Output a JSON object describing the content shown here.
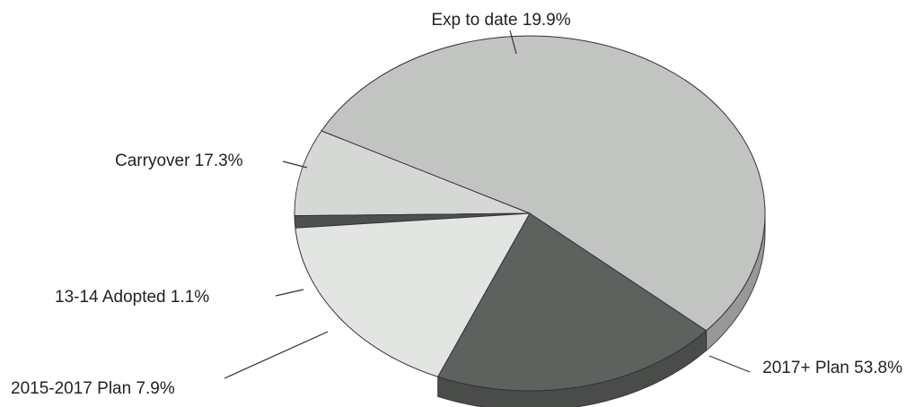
{
  "chart_data": {
    "type": "pie",
    "title": "",
    "slices": [
      {
        "name": "Exp to date",
        "value": 19.9,
        "label": "Exp to date  19.9%",
        "color": "#5e625e"
      },
      {
        "name": "2017+ Plan",
        "value": 53.8,
        "label": "2017+ Plan  53.8%",
        "color": "#c2c4c2"
      },
      {
        "name": "2015-2017 Plan",
        "value": 7.9,
        "label": "2015-2017 Plan  7.9%",
        "color": "#d6d8d6"
      },
      {
        "name": "13-14 Adopted",
        "value": 1.1,
        "label": "13-14 Adopted   1.1%",
        "color": "#4d514d"
      },
      {
        "name": "Carryover",
        "value": 17.3,
        "label": "Carryover  17.3%",
        "color": "#e3e5e3"
      }
    ],
    "legend": "none",
    "style": "3d-tilted"
  }
}
